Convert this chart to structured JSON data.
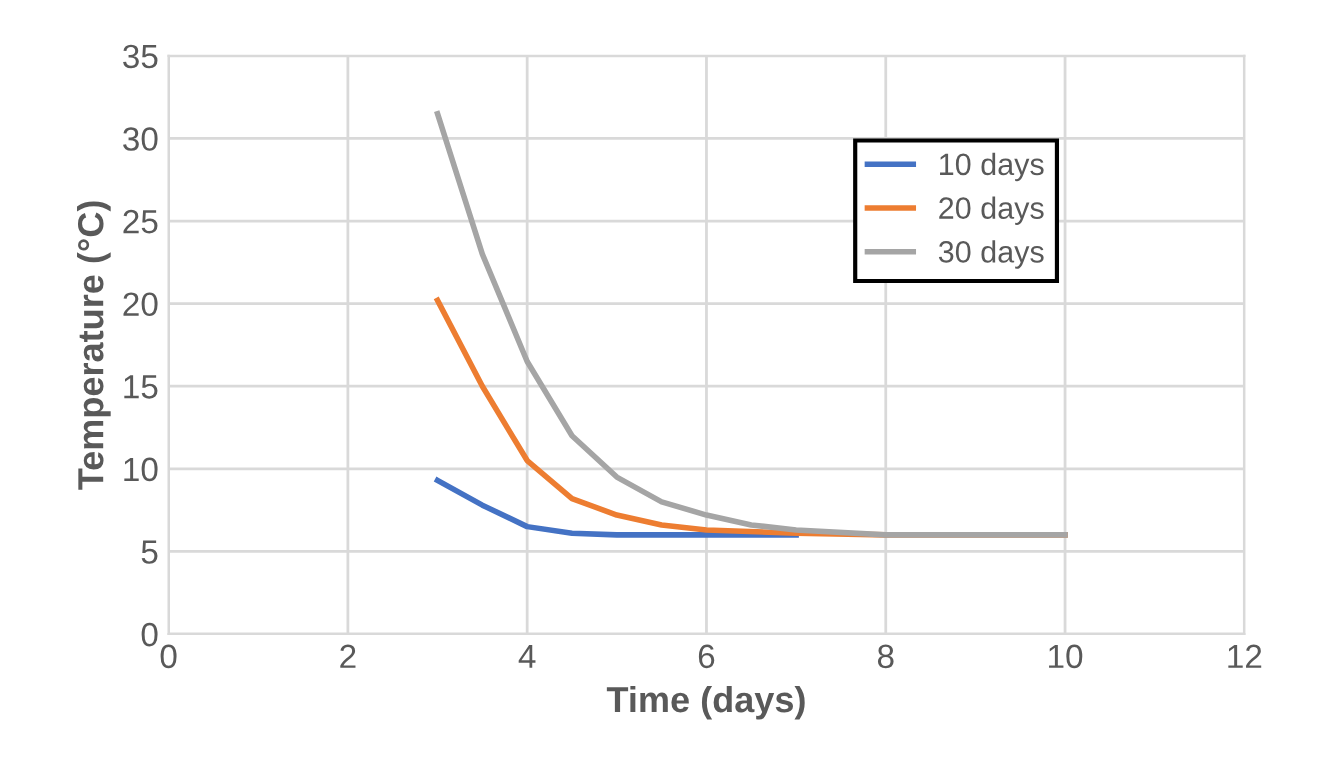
{
  "chart_data": {
    "type": "line",
    "xlabel": "Time (days)",
    "ylabel": "Temperature (°C)",
    "xlim": [
      0,
      12
    ],
    "xticks": [
      0,
      2,
      4,
      6,
      8,
      10,
      12
    ],
    "ylim": [
      0,
      35
    ],
    "yticks": [
      0,
      5,
      10,
      15,
      20,
      25,
      30,
      35
    ],
    "grid": true,
    "legend": "top right",
    "marker": "none",
    "line_style": "solid",
    "series": [
      {
        "name": "10 days",
        "color": "#4472c4",
        "x": [
          3,
          3.5,
          4,
          4.5,
          5,
          6,
          7
        ],
        "values": [
          9.3,
          7.8,
          6.5,
          6.1,
          6.0,
          6,
          6
        ]
      },
      {
        "name": "20 days",
        "color": "#ed7d31",
        "x": [
          3,
          3.5,
          4,
          4.5,
          5,
          5.5,
          6,
          7,
          8,
          9,
          10
        ],
        "values": [
          20.2,
          15,
          10.5,
          8.2,
          7.2,
          6.6,
          6.3,
          6.1,
          6,
          6,
          6
        ]
      },
      {
        "name": "30 days",
        "color": "#a5a5a5",
        "x": [
          3,
          3.5,
          4,
          4.5,
          5,
          5.5,
          6,
          6.5,
          7,
          8,
          9,
          10
        ],
        "values": [
          31.5,
          23,
          16.5,
          12,
          9.5,
          8,
          7.2,
          6.6,
          6.3,
          6,
          6,
          6
        ]
      }
    ]
  }
}
